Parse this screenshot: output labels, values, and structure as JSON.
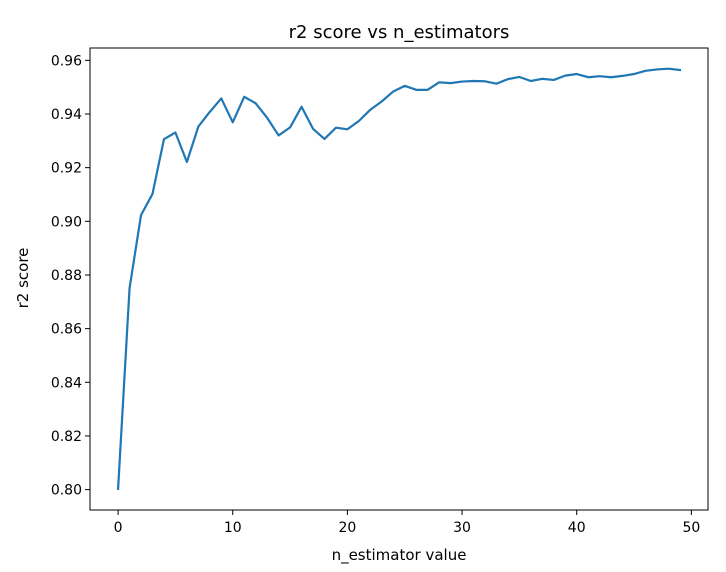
{
  "chart_data": {
    "type": "line",
    "title": "r2 score vs n_estimators",
    "xlabel": "n_estimator value",
    "ylabel": "r2 score",
    "xlim": [
      -2.45,
      51.45
    ],
    "ylim": [
      0.7924,
      0.9646
    ],
    "xticks": [
      0,
      10,
      20,
      30,
      40,
      50
    ],
    "yticks": [
      0.8,
      0.82,
      0.84,
      0.86,
      0.88,
      0.9,
      0.92,
      0.94,
      0.96
    ],
    "ytick_labels": [
      "0.80",
      "0.82",
      "0.84",
      "0.86",
      "0.88",
      "0.90",
      "0.92",
      "0.94",
      "0.96"
    ],
    "xtick_labels": [
      "0",
      "10",
      "20",
      "30",
      "40",
      "50"
    ],
    "grid": false,
    "legend": null,
    "series": [
      {
        "color": "#1f77b4",
        "x": [
          0,
          1,
          2,
          3,
          4,
          5,
          6,
          7,
          8,
          9,
          10,
          11,
          12,
          13,
          14,
          15,
          16,
          17,
          18,
          19,
          20,
          21,
          22,
          23,
          24,
          25,
          26,
          27,
          28,
          29,
          30,
          31,
          32,
          33,
          34,
          35,
          36,
          37,
          38,
          39,
          40,
          41,
          42,
          43,
          44,
          45,
          46,
          47,
          48,
          49
        ],
        "y": [
          0.8003,
          0.8751,
          0.9023,
          0.9102,
          0.9306,
          0.9331,
          0.9221,
          0.9353,
          0.9408,
          0.9458,
          0.9369,
          0.9464,
          0.944,
          0.9386,
          0.932,
          0.935,
          0.9427,
          0.9345,
          0.9307,
          0.9349,
          0.9343,
          0.9374,
          0.9416,
          0.9447,
          0.9484,
          0.9505,
          0.949,
          0.949,
          0.9518,
          0.9515,
          0.9521,
          0.9523,
          0.9522,
          0.9513,
          0.953,
          0.9538,
          0.9523,
          0.9531,
          0.9527,
          0.9543,
          0.9549,
          0.9537,
          0.9541,
          0.9537,
          0.9542,
          0.9549,
          0.9561,
          0.9566,
          0.9569,
          0.9564
        ]
      }
    ]
  }
}
